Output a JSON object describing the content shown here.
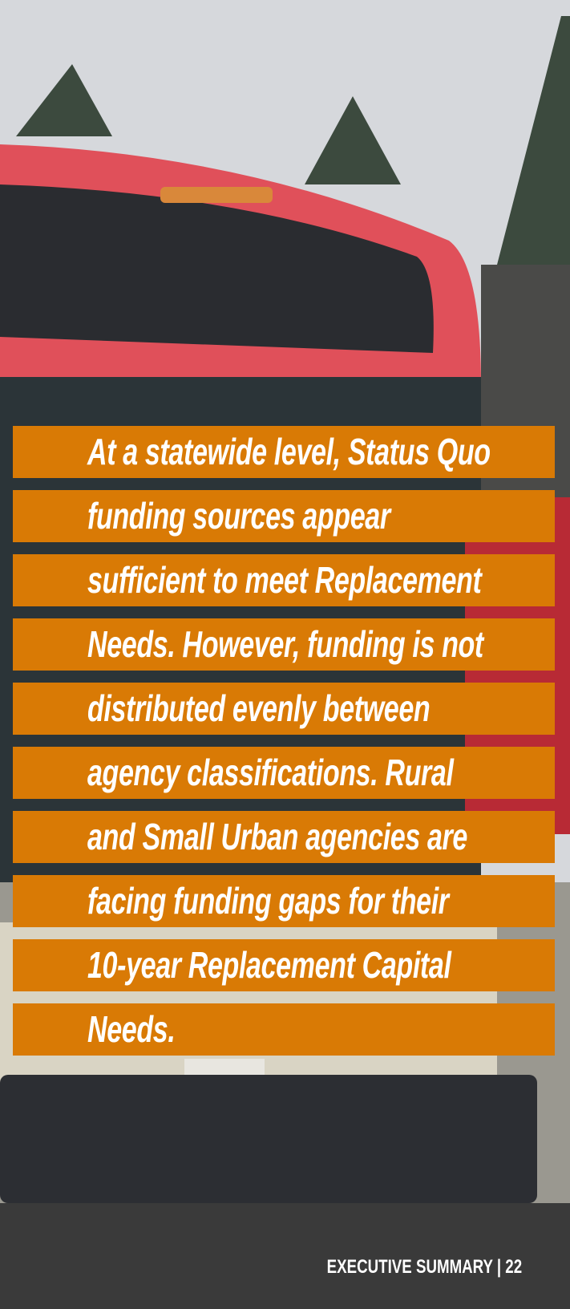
{
  "quote": {
    "lines": [
      "At a statewide level, Status Quo",
      "funding sources appear",
      "sufficient to meet Replacement",
      "Needs. However, funding is not",
      "distributed evenly between",
      "agency classifications. Rural",
      "and Small Urban agencies are",
      "facing funding gaps for their",
      "10-year Replacement Capital",
      "Needs."
    ]
  },
  "footer": {
    "text": "EXECUTIVE SUMMARY | 22"
  }
}
